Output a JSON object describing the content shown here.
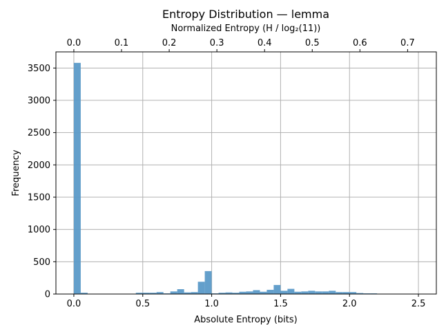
{
  "chart_data": {
    "type": "bar",
    "title": "Entropy Distribution — lemma",
    "xlabel": "Absolute Entropy (bits)",
    "ylabel": "Frequency",
    "top_xlabel": "Normalized Entropy (H / log₂(11))",
    "xlim": [
      -0.13,
      2.63
    ],
    "ylim": [
      0,
      3750
    ],
    "xticks": [
      0.0,
      0.5,
      1.0,
      1.5,
      2.0,
      2.5
    ],
    "xtick_labels": [
      "0.0",
      "0.5",
      "1.0",
      "1.5",
      "2.0",
      "2.5"
    ],
    "yticks": [
      0,
      500,
      1000,
      1500,
      2000,
      2500,
      3000,
      3500
    ],
    "ytick_labels": [
      "0",
      "500",
      "1000",
      "1500",
      "2000",
      "2500",
      "3000",
      "3500"
    ],
    "top_xticks": [
      0.0,
      0.1,
      0.2,
      0.3,
      0.4,
      0.5,
      0.6,
      0.7
    ],
    "top_xtick_labels": [
      "0.0",
      "0.1",
      "0.2",
      "0.3",
      "0.4",
      "0.5",
      "0.6",
      "0.7"
    ],
    "top_axis_scale": 3.4594,
    "grid": true,
    "color": "#5b9ac8",
    "bin_width": 0.05,
    "bin_starts": [
      0.0,
      0.05,
      0.1,
      0.15,
      0.2,
      0.25,
      0.3,
      0.35,
      0.4,
      0.45,
      0.5,
      0.55,
      0.6,
      0.65,
      0.7,
      0.75,
      0.8,
      0.85,
      0.9,
      0.95,
      1.0,
      1.05,
      1.1,
      1.15,
      1.2,
      1.25,
      1.3,
      1.35,
      1.4,
      1.45,
      1.5,
      1.55,
      1.6,
      1.65,
      1.7,
      1.75,
      1.8,
      1.85,
      1.9,
      1.95,
      2.0,
      2.05,
      2.1,
      2.15,
      2.2,
      2.25,
      2.3,
      2.35,
      2.4,
      2.45
    ],
    "values": [
      3580,
      20,
      5,
      5,
      5,
      5,
      5,
      5,
      5,
      20,
      20,
      20,
      30,
      10,
      40,
      75,
      25,
      30,
      190,
      355,
      10,
      20,
      25,
      20,
      35,
      40,
      60,
      35,
      65,
      140,
      50,
      80,
      35,
      40,
      50,
      40,
      40,
      50,
      30,
      30,
      30,
      15,
      10,
      10,
      5,
      5,
      5,
      5,
      5,
      0
    ]
  }
}
